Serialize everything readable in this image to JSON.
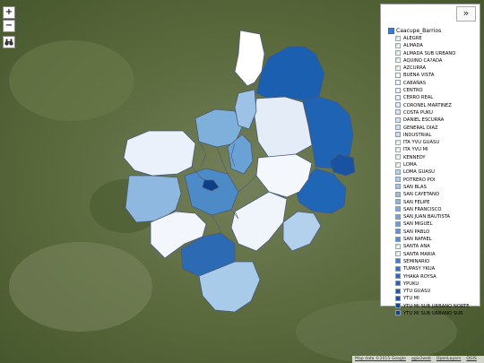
{
  "controls": {
    "zoom_in": "+",
    "zoom_out": "−",
    "tool_icon": "binoculars-icon",
    "collapse": "»"
  },
  "layer": {
    "name": "Caacupe_Barrios",
    "checked": true
  },
  "legend": [
    {
      "label": "ALEGRE",
      "color": "broken-image"
    },
    {
      "label": "ALMADA",
      "color": "broken-image"
    },
    {
      "label": "ALMADA SUB URBANO",
      "color": "broken-image"
    },
    {
      "label": "AQUINO CA?ADA",
      "color": "broken-image"
    },
    {
      "label": "AZCURRA",
      "color": "broken-image"
    },
    {
      "label": "BUENA VISTA",
      "color": "#ffffff"
    },
    {
      "label": "CABAÑAS",
      "color": "#f3f7fd"
    },
    {
      "label": "CENTRO",
      "color": "#eef3fb"
    },
    {
      "label": "CERRO REAL",
      "color": "#e8eff9"
    },
    {
      "label": "CORONEL MARTINEZ",
      "color": "#e2eaf7"
    },
    {
      "label": "COSTA PUKU",
      "color": "#dbe6f5"
    },
    {
      "label": "DANIEL ESCURRA",
      "color": "#d6e3f3"
    },
    {
      "label": "GENERAL DIAZ",
      "color": "#d0dff1"
    },
    {
      "label": "INDUSTRIAL",
      "color": "#c9dbef"
    },
    {
      "label": "ITA YVU GUASU",
      "color": "broken-image"
    },
    {
      "label": "ITA YVU MI",
      "color": "broken-image"
    },
    {
      "label": "KENNEDY",
      "color": "broken-image"
    },
    {
      "label": "LOMA",
      "color": "broken-image"
    },
    {
      "label": "LOMA GUASU",
      "color": "#b9d4ed"
    },
    {
      "label": "POTRERO POI",
      "color": "#aecdeb"
    },
    {
      "label": "SAN BLAS",
      "color": "#a3c5e7"
    },
    {
      "label": "SAN CAYETANO",
      "color": "#97bde2"
    },
    {
      "label": "SAN FELIPE",
      "color": "#8bb4de"
    },
    {
      "label": "SAN FRANCISCO",
      "color": "#80acda"
    },
    {
      "label": "SAN JUAN BAUTISTA",
      "color": "#75a4d6"
    },
    {
      "label": "SAN MIGUEL",
      "color": "#6a9dd2"
    },
    {
      "label": "SAN PABLO",
      "color": "#5f95ce"
    },
    {
      "label": "SAN RAFAEL",
      "color": "#548dca"
    },
    {
      "label": "SANTA ANA",
      "color": "broken-image"
    },
    {
      "label": "SANTA MARIA",
      "color": "broken-image"
    },
    {
      "label": "SEMINARIO",
      "color": "#3f7cc0"
    },
    {
      "label": "TUPASY YKUA",
      "color": "#3573ba"
    },
    {
      "label": "YHAKA ROYSA",
      "color": "#2d6ab4"
    },
    {
      "label": "YPUKU",
      "color": "#2562ae"
    },
    {
      "label": "YTU GUASU",
      "color": "#1e5aa7"
    },
    {
      "label": "YTU MI",
      "color": "#1852a0"
    },
    {
      "label": "YTU MI SUB URBANO NORTE",
      "color": "#124a98"
    },
    {
      "label": "YTU MI SUB URBANO SUR",
      "color": "#0d4290"
    }
  ],
  "attribution": [
    "Map data ©2015 Google",
    "qgis2web",
    "OpenLayers",
    "QGIS"
  ],
  "regions": [
    {
      "id": "north-light",
      "color": "#ffffff"
    },
    {
      "id": "northeast-dark",
      "color": "#1a5fb0"
    },
    {
      "id": "east-mid",
      "color": "#1e63b4"
    },
    {
      "id": "east-small",
      "color": "#1852a0"
    },
    {
      "id": "southeast-dark",
      "color": "#1f66b6"
    },
    {
      "id": "center-east-light",
      "color": "#e4ecf8"
    },
    {
      "id": "center-east-white",
      "color": "#f4f8fd"
    },
    {
      "id": "south-center-white",
      "color": "#f0f5fc"
    },
    {
      "id": "south-small-light",
      "color": "#b3d0ec"
    },
    {
      "id": "west-light",
      "color": "#eaf1fa"
    },
    {
      "id": "west-mid",
      "color": "#8fb8e0"
    },
    {
      "id": "southwest-light",
      "color": "#f3f7fd"
    },
    {
      "id": "south-dark",
      "color": "#2d6ab4"
    },
    {
      "id": "south-light",
      "color": "#a9cbea"
    },
    {
      "id": "north-center-mid",
      "color": "#7fb0dc"
    },
    {
      "id": "center-blue",
      "color": "#4d8ac8"
    },
    {
      "id": "center-navy",
      "color": "#0d3f86"
    },
    {
      "id": "center-mid2",
      "color": "#6aa2d5"
    },
    {
      "id": "center-mid3",
      "color": "#9cc3e6"
    }
  ]
}
